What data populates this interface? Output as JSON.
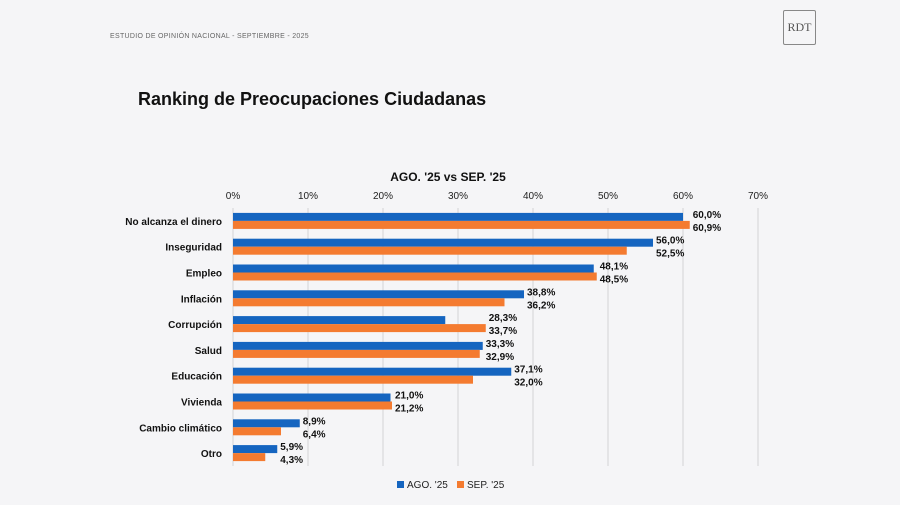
{
  "header": {
    "subtitle": "ESTUDIO DE OPINIÓN NACIONAL - SEPTIEMBRE - 2025",
    "logo_text": "RDT"
  },
  "page_title": "Ranking de Preocupaciones Ciudadanas",
  "chart_data": {
    "type": "bar",
    "orientation": "horizontal",
    "title": "AGO. '25 vs SEP. '25",
    "categories": [
      "No alcanza el dinero",
      "Inseguridad",
      "Empleo",
      "Inflación",
      "Corrupción",
      "Salud",
      "Educación",
      "Vivienda",
      "Cambio climático",
      "Otro"
    ],
    "series": [
      {
        "name": "AGO. '25",
        "color": "#1565c0",
        "values": [
          60.0,
          56.0,
          48.1,
          38.8,
          28.3,
          33.3,
          37.1,
          21.0,
          8.9,
          5.9
        ],
        "labels": [
          "60,0%",
          "56,0%",
          "48,1%",
          "38,8%",
          "28,3%",
          "33,3%",
          "37,1%",
          "21,0%",
          "8,9%",
          "5,9%"
        ]
      },
      {
        "name": "SEP. '25",
        "color": "#f47b30",
        "values": [
          60.9,
          52.5,
          48.5,
          36.2,
          33.7,
          32.9,
          32.0,
          21.2,
          6.4,
          4.3
        ],
        "labels": [
          "60,9%",
          "52,5%",
          "48,5%",
          "36,2%",
          "33,7%",
          "32,9%",
          "32,0%",
          "21,2%",
          "6,4%",
          "4,3%"
        ]
      }
    ],
    "xlim": [
      0,
      70
    ],
    "xticks": [
      "0%",
      "10%",
      "20%",
      "30%",
      "40%",
      "50%",
      "60%",
      "70%"
    ],
    "grid": true,
    "legend_position": "bottom"
  }
}
